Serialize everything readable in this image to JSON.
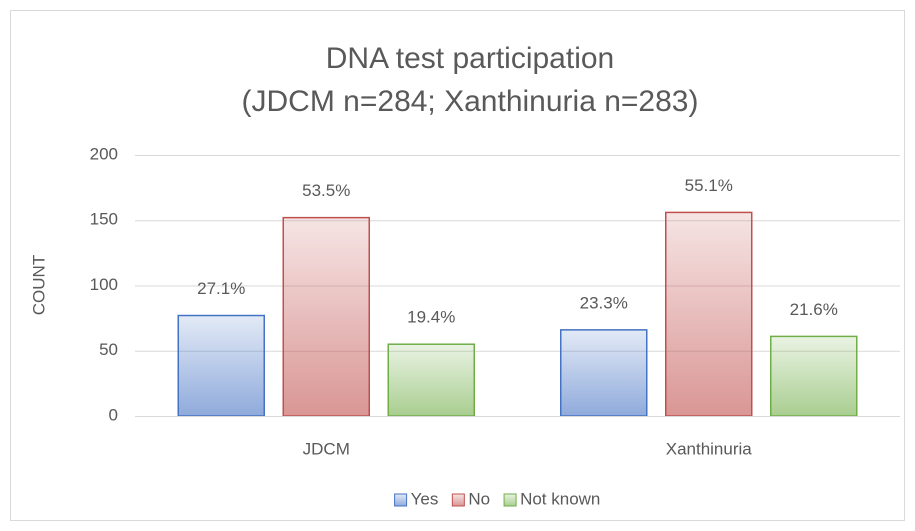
{
  "chart_data": {
    "type": "bar",
    "title": [
      "DNA test participation",
      "(JDCM n=284; Xanthinuria n=283)"
    ],
    "y_label": "COUNT",
    "categories": [
      "JDCM",
      "Xanthinuria"
    ],
    "series": [
      {
        "name": "Yes",
        "color": "#4472c4",
        "values": [
          77,
          66
        ],
        "value_labels": [
          "27.1%",
          "23.3%"
        ]
      },
      {
        "name": "No",
        "color": "#c0504d",
        "values": [
          152,
          156
        ],
        "value_labels": [
          "53.5%",
          "55.1%"
        ]
      },
      {
        "name": "Not known",
        "color": "#70ad47",
        "values": [
          55,
          61
        ],
        "value_labels": [
          "19.4%",
          "21.6%"
        ]
      }
    ],
    "ylim": [
      0,
      200
    ],
    "yticks": [
      0,
      50,
      100,
      150,
      200
    ],
    "grid": true,
    "legend": "bottom"
  }
}
